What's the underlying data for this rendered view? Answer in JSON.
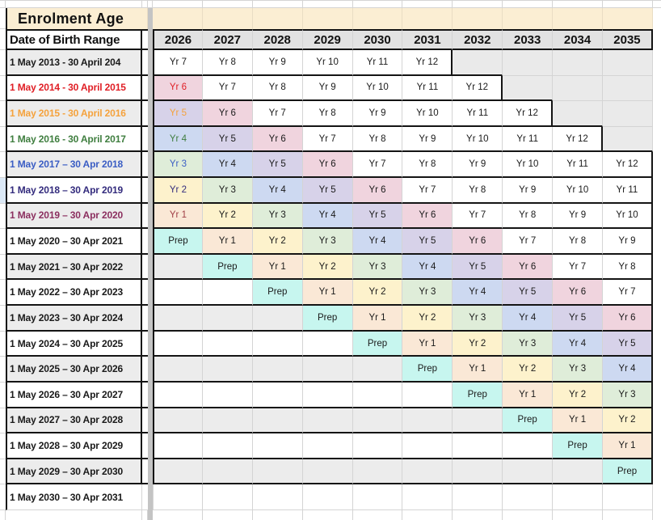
{
  "title": "Enrolment Age",
  "header": {
    "row_label": "Date of Birth Range",
    "years": [
      "2026",
      "2027",
      "2028",
      "2029",
      "2030",
      "2031",
      "2032",
      "2033",
      "2034",
      "2035"
    ]
  },
  "colors": {
    "title_bg": "#FBEED3",
    "year_header_bg": "#E2E2E2",
    "band_gray": "#ECECEC",
    "band_white": "#FFFFFF",
    "trailing_gray": "#EAEAEA",
    "divider_bar": "#C4C4C4",
    "gridline": "#D4D4D4",
    "border_black": "#141414",
    "left_strip_highlight": "#DCE9F6",
    "cell_bg": {
      "white": "#FFFFFF",
      "cyan": "#C7F6EF",
      "peach": "#FAE8D6",
      "yellow": "#FDF2CC",
      "green": "#DFEDD9",
      "blue": "#CDD9F1",
      "purple": "#D7D2E9",
      "pink": "#F0D4DE"
    },
    "text": {
      "black": "#1A1A1A",
      "red": "#E01E25",
      "orange": "#F5A23C",
      "green": "#3F7E3F",
      "blue": "#3A5DC4",
      "indigo": "#332B7D",
      "plum": "#8B2F5F",
      "rust": "#A03E46"
    }
  },
  "rows": [
    {
      "label": "1 May 2013 - 30 April 204",
      "label_color": "black",
      "band": "gray",
      "trail": 4,
      "cells": [
        {
          "t": "Yr 7"
        },
        {
          "t": "Yr 8"
        },
        {
          "t": "Yr 9"
        },
        {
          "t": "Yr 10"
        },
        {
          "t": "Yr 11"
        },
        {
          "t": "Yr 12"
        },
        null,
        null,
        null,
        null
      ]
    },
    {
      "label": "1 May 2014 - 30 April 2015",
      "label_color": "red",
      "band": "white",
      "trail": 3,
      "cells": [
        {
          "t": "Yr 6",
          "bg": "pink",
          "fg": "red"
        },
        {
          "t": "Yr 7"
        },
        {
          "t": "Yr 8"
        },
        {
          "t": "Yr 9"
        },
        {
          "t": "Yr 10"
        },
        {
          "t": "Yr 11"
        },
        {
          "t": "Yr 12"
        },
        null,
        null,
        null
      ]
    },
    {
      "label": "1 May 2015 - 30 April 2016",
      "label_color": "orange",
      "band": "gray",
      "trail": 2,
      "cells": [
        {
          "t": "Yr 5",
          "bg": "purple",
          "fg": "orange"
        },
        {
          "t": "Yr 6",
          "bg": "pink"
        },
        {
          "t": "Yr 7"
        },
        {
          "t": "Yr 8"
        },
        {
          "t": "Yr 9"
        },
        {
          "t": "Yr 10"
        },
        {
          "t": "Yr 11"
        },
        {
          "t": "Yr 12"
        },
        null,
        null
      ]
    },
    {
      "label": "1 May 2016 - 30 April 2017",
      "label_color": "green",
      "band": "white",
      "trail": 1,
      "cells": [
        {
          "t": "Yr 4",
          "bg": "blue",
          "fg": "green"
        },
        {
          "t": "Yr 5",
          "bg": "purple"
        },
        {
          "t": "Yr 6",
          "bg": "pink"
        },
        {
          "t": "Yr 7"
        },
        {
          "t": "Yr 8"
        },
        {
          "t": "Yr 9"
        },
        {
          "t": "Yr 10"
        },
        {
          "t": "Yr 11"
        },
        {
          "t": "Yr 12"
        },
        null
      ]
    },
    {
      "label": "1 May 2017 – 30 Apr 2018",
      "label_color": "blue",
      "band": "gray",
      "trail": 0,
      "cells": [
        {
          "t": "Yr 3",
          "bg": "green",
          "fg": "blue"
        },
        {
          "t": "Yr 4",
          "bg": "blue"
        },
        {
          "t": "Yr 5",
          "bg": "purple"
        },
        {
          "t": "Yr 6",
          "bg": "pink"
        },
        {
          "t": "Yr 7"
        },
        {
          "t": "Yr 8"
        },
        {
          "t": "Yr 9"
        },
        {
          "t": "Yr 10"
        },
        {
          "t": "Yr 11"
        },
        {
          "t": "Yr 12"
        }
      ]
    },
    {
      "label": "1 May 2018 – 30 Apr 2019",
      "label_color": "indigo",
      "band": "white",
      "trail": 0,
      "cells": [
        {
          "t": "Yr 2",
          "bg": "yellow",
          "fg": "indigo"
        },
        {
          "t": "Yr 3",
          "bg": "green"
        },
        {
          "t": "Yr 4",
          "bg": "blue"
        },
        {
          "t": "Yr 5",
          "bg": "purple"
        },
        {
          "t": "Yr 6",
          "bg": "pink"
        },
        {
          "t": "Yr 7"
        },
        {
          "t": "Yr 8"
        },
        {
          "t": "Yr 9"
        },
        {
          "t": "Yr 10"
        },
        {
          "t": "Yr 11"
        }
      ]
    },
    {
      "label": "1 May 2019 – 30 Apr 2020",
      "label_color": "plum",
      "band": "gray",
      "trail": 0,
      "cells": [
        {
          "t": "Yr 1",
          "bg": "peach",
          "fg": "rust"
        },
        {
          "t": "Yr 2",
          "bg": "yellow"
        },
        {
          "t": "Yr 3",
          "bg": "green"
        },
        {
          "t": "Yr 4",
          "bg": "blue"
        },
        {
          "t": "Yr 5",
          "bg": "purple"
        },
        {
          "t": "Yr 6",
          "bg": "pink"
        },
        {
          "t": "Yr 7"
        },
        {
          "t": "Yr 8"
        },
        {
          "t": "Yr 9"
        },
        {
          "t": "Yr 10"
        }
      ]
    },
    {
      "label": "1 May 2020 – 30 Apr 2021",
      "label_color": "black",
      "band": "white",
      "trail": 0,
      "cells": [
        {
          "t": "Prep",
          "bg": "cyan"
        },
        {
          "t": "Yr 1",
          "bg": "peach"
        },
        {
          "t": "Yr 2",
          "bg": "yellow"
        },
        {
          "t": "Yr 3",
          "bg": "green"
        },
        {
          "t": "Yr 4",
          "bg": "blue"
        },
        {
          "t": "Yr 5",
          "bg": "purple"
        },
        {
          "t": "Yr 6",
          "bg": "pink"
        },
        {
          "t": "Yr 7"
        },
        {
          "t": "Yr 8"
        },
        {
          "t": "Yr 9"
        }
      ]
    },
    {
      "label": "1 May 2021 – 30 Apr 2022",
      "label_color": "black",
      "band": "gray",
      "trail": 0,
      "cells": [
        null,
        {
          "t": "Prep",
          "bg": "cyan"
        },
        {
          "t": "Yr 1",
          "bg": "peach"
        },
        {
          "t": "Yr 2",
          "bg": "yellow"
        },
        {
          "t": "Yr 3",
          "bg": "green"
        },
        {
          "t": "Yr 4",
          "bg": "blue"
        },
        {
          "t": "Yr 5",
          "bg": "purple"
        },
        {
          "t": "Yr 6",
          "bg": "pink"
        },
        {
          "t": "Yr 7"
        },
        {
          "t": "Yr 8"
        }
      ]
    },
    {
      "label": "1 May 2022 – 30 Apr 2023",
      "label_color": "black",
      "band": "white",
      "trail": 0,
      "cells": [
        null,
        null,
        {
          "t": "Prep",
          "bg": "cyan"
        },
        {
          "t": "Yr 1",
          "bg": "peach"
        },
        {
          "t": "Yr 2",
          "bg": "yellow"
        },
        {
          "t": "Yr 3",
          "bg": "green"
        },
        {
          "t": "Yr 4",
          "bg": "blue"
        },
        {
          "t": "Yr 5",
          "bg": "purple"
        },
        {
          "t": "Yr 6",
          "bg": "pink"
        },
        {
          "t": "Yr 7"
        }
      ]
    },
    {
      "label": "1 May 2023 – 30 Apr 2024",
      "label_color": "black",
      "band": "gray",
      "trail": 0,
      "cells": [
        null,
        null,
        null,
        {
          "t": "Prep",
          "bg": "cyan"
        },
        {
          "t": "Yr 1",
          "bg": "peach"
        },
        {
          "t": "Yr 2",
          "bg": "yellow"
        },
        {
          "t": "Yr 3",
          "bg": "green"
        },
        {
          "t": "Yr 4",
          "bg": "blue"
        },
        {
          "t": "Yr 5",
          "bg": "purple"
        },
        {
          "t": "Yr 6",
          "bg": "pink"
        }
      ]
    },
    {
      "label": "1 May 2024 – 30 Apr 2025",
      "label_color": "black",
      "band": "white",
      "trail": 0,
      "cells": [
        null,
        null,
        null,
        null,
        {
          "t": "Prep",
          "bg": "cyan"
        },
        {
          "t": "Yr 1",
          "bg": "peach"
        },
        {
          "t": "Yr 2",
          "bg": "yellow"
        },
        {
          "t": "Yr 3",
          "bg": "green"
        },
        {
          "t": "Yr 4",
          "bg": "blue"
        },
        {
          "t": "Yr 5",
          "bg": "purple"
        }
      ]
    },
    {
      "label": "1 May 2025 – 30 Apr 2026",
      "label_color": "black",
      "band": "gray",
      "trail": 0,
      "cells": [
        null,
        null,
        null,
        null,
        null,
        {
          "t": "Prep",
          "bg": "cyan"
        },
        {
          "t": "Yr 1",
          "bg": "peach"
        },
        {
          "t": "Yr 2",
          "bg": "yellow"
        },
        {
          "t": "Yr 3",
          "bg": "green"
        },
        {
          "t": "Yr 4",
          "bg": "blue"
        }
      ]
    },
    {
      "label": "1 May 2026 – 30 Apr 2027",
      "label_color": "black",
      "band": "white",
      "trail": 0,
      "cells": [
        null,
        null,
        null,
        null,
        null,
        null,
        {
          "t": "Prep",
          "bg": "cyan"
        },
        {
          "t": "Yr 1",
          "bg": "peach"
        },
        {
          "t": "Yr 2",
          "bg": "yellow"
        },
        {
          "t": "Yr 3",
          "bg": "green"
        }
      ]
    },
    {
      "label": "1 May 2027 – 30 Apr 2028",
      "label_color": "black",
      "band": "gray",
      "trail": 0,
      "cells": [
        null,
        null,
        null,
        null,
        null,
        null,
        null,
        {
          "t": "Prep",
          "bg": "cyan"
        },
        {
          "t": "Yr 1",
          "bg": "peach"
        },
        {
          "t": "Yr 2",
          "bg": "yellow"
        }
      ]
    },
    {
      "label": "1 May 2028 – 30 Apr 2029",
      "label_color": "black",
      "band": "white",
      "trail": 0,
      "cells": [
        null,
        null,
        null,
        null,
        null,
        null,
        null,
        null,
        {
          "t": "Prep",
          "bg": "cyan"
        },
        {
          "t": "Yr 1",
          "bg": "peach"
        }
      ]
    },
    {
      "label": "1 May 2029 – 30 Apr 2030",
      "label_color": "black",
      "band": "gray",
      "trail": 0,
      "cells": [
        null,
        null,
        null,
        null,
        null,
        null,
        null,
        null,
        null,
        {
          "t": "Prep",
          "bg": "cyan"
        }
      ]
    },
    {
      "label": "1 May 2030 – 30 Apr 2031",
      "label_color": "black",
      "band": "white",
      "trail": 0,
      "cells": [
        null,
        null,
        null,
        null,
        null,
        null,
        null,
        null,
        null,
        null
      ]
    }
  ]
}
